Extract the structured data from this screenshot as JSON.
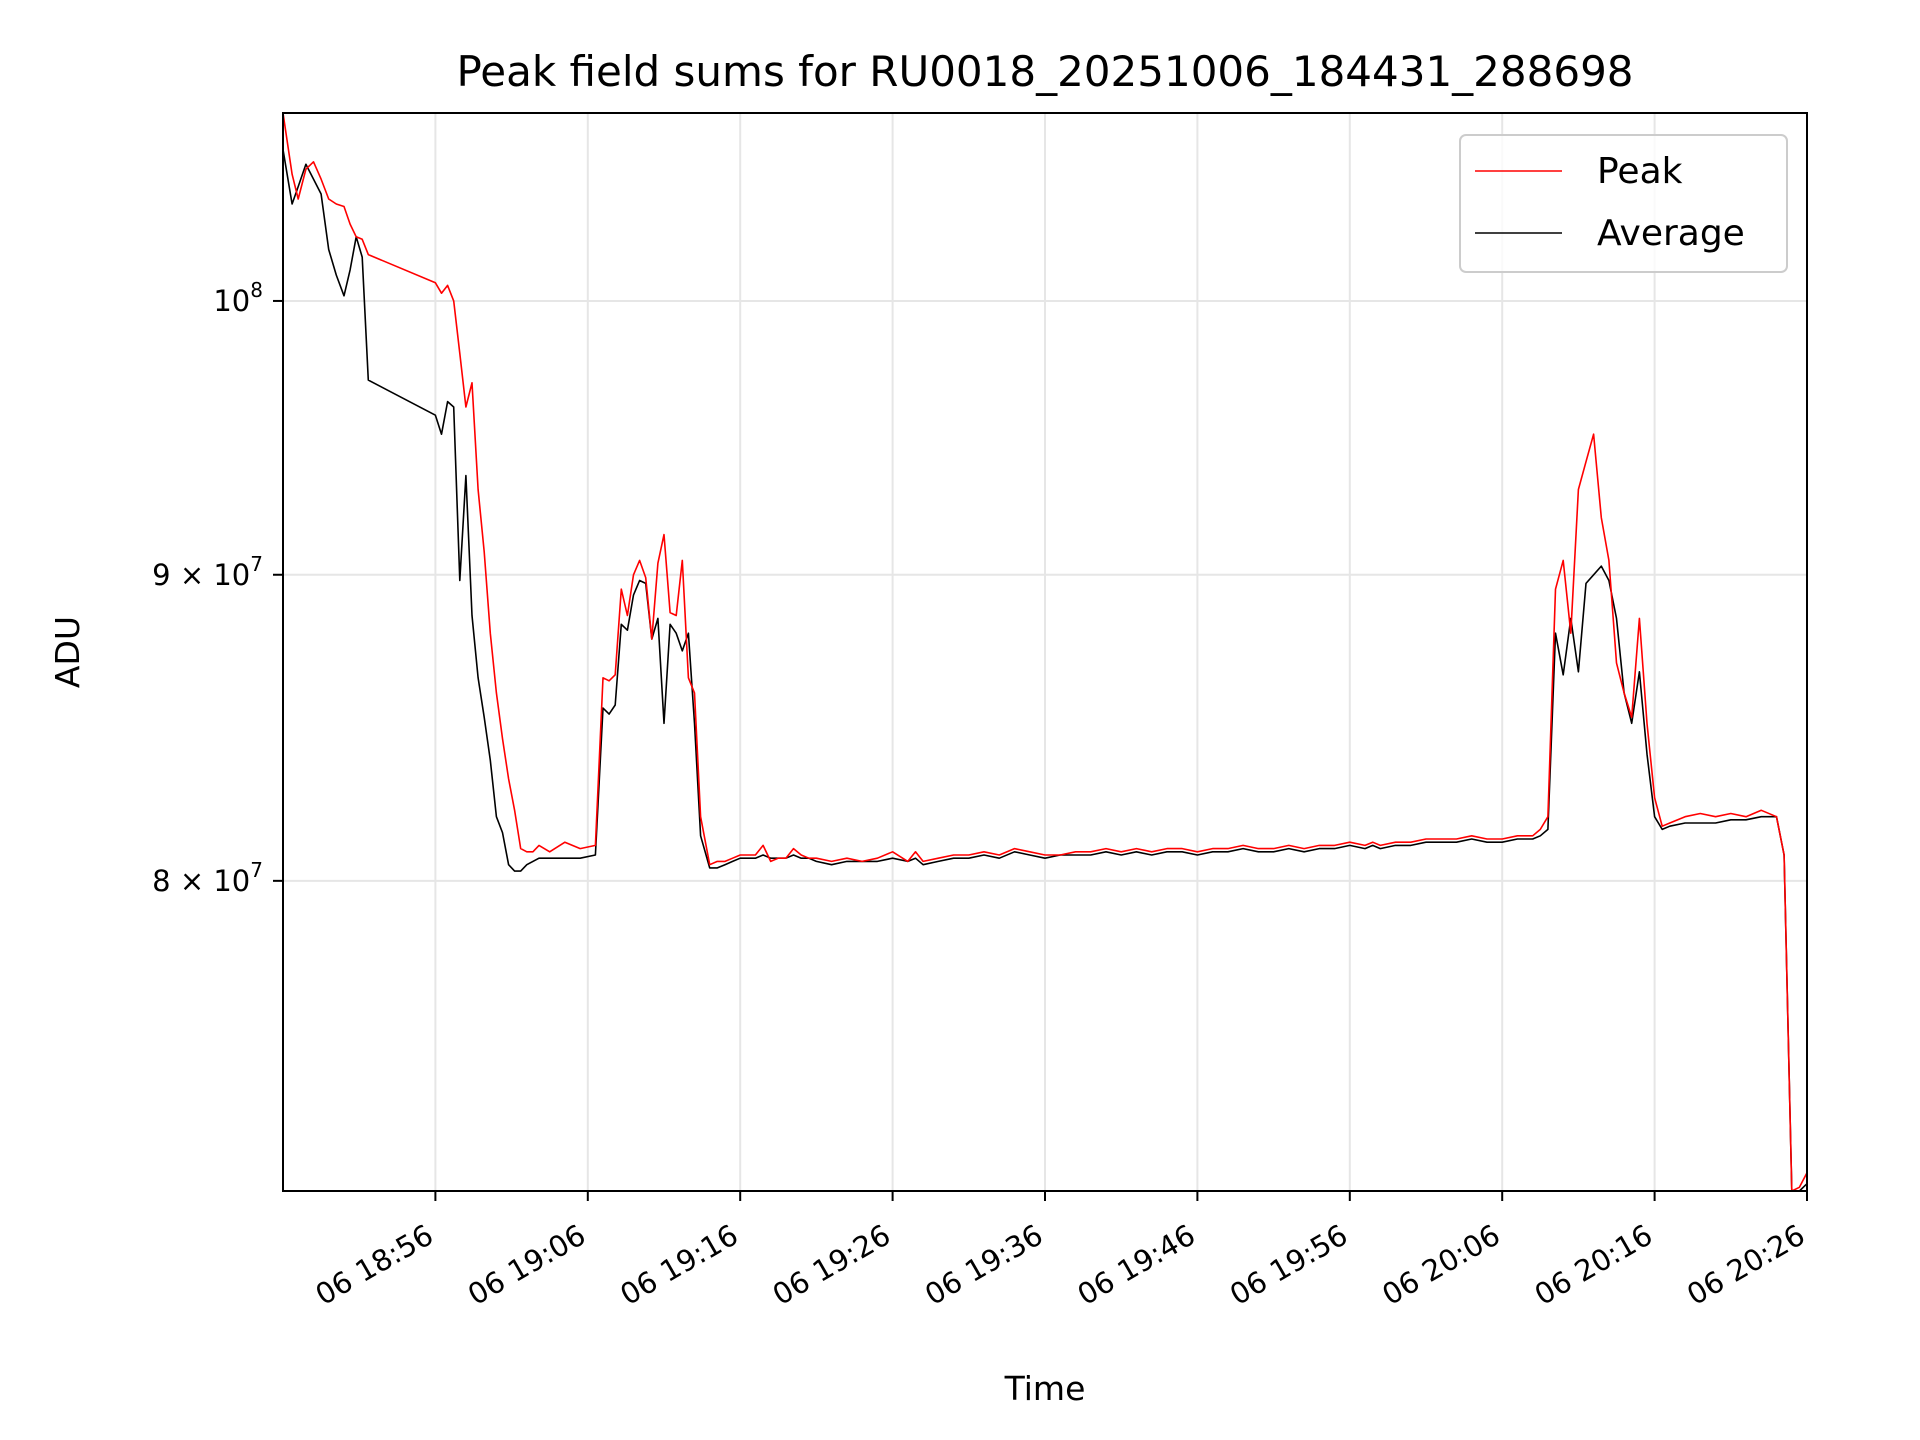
{
  "chart_data": {
    "type": "line",
    "title": "Peak field sums for RU0018_20251006_184431_288698",
    "xlabel": "Time",
    "ylabel": "ADU",
    "y_scale": "log",
    "ylim": [
      71000000,
      107500000
    ],
    "x_unit": "minutes after 18:46",
    "xlim": [
      0,
      100
    ],
    "x_ticks": [
      {
        "value": 10,
        "label": "06 18:56"
      },
      {
        "value": 20,
        "label": "06 19:06"
      },
      {
        "value": 30,
        "label": "06 19:16"
      },
      {
        "value": 40,
        "label": "06 19:26"
      },
      {
        "value": 50,
        "label": "06 19:36"
      },
      {
        "value": 60,
        "label": "06 19:46"
      },
      {
        "value": 70,
        "label": "06 19:56"
      },
      {
        "value": 80,
        "label": "06 20:06"
      },
      {
        "value": 90,
        "label": "06 20:16"
      },
      {
        "value": 100,
        "label": "06 20:26"
      }
    ],
    "y_ticks": [
      {
        "value": 80000000,
        "label": "8 × 10",
        "exp": "7"
      },
      {
        "value": 90000000,
        "label": "9 × 10",
        "exp": "7"
      },
      {
        "value": 100000000,
        "label": "10",
        "exp": "8"
      }
    ],
    "grid": true,
    "legend": "top-right",
    "series": [
      {
        "name": "Peak",
        "color": "#ff0000",
        "x": [
          0,
          0.6,
          1,
          1.5,
          2,
          2.5,
          3,
          3.5,
          4,
          4.4,
          4.8,
          5.2,
          5.6,
          10,
          10.4,
          10.8,
          11.2,
          11.6,
          12,
          12.4,
          12.8,
          13.2,
          13.6,
          14,
          14.4,
          14.8,
          15.2,
          15.6,
          16,
          16.4,
          16.8,
          17.5,
          18.5,
          19.5,
          20.5,
          21,
          21.4,
          21.8,
          22.2,
          22.6,
          23,
          23.4,
          23.8,
          24.2,
          24.6,
          25,
          25.4,
          25.8,
          26.2,
          26.6,
          27,
          27.4,
          28,
          28.5,
          29,
          29.5,
          30,
          31,
          31.5,
          32,
          32.5,
          33,
          33.5,
          34,
          34.5,
          35,
          36,
          37,
          38,
          39,
          40,
          41,
          41.5,
          42,
          43,
          44,
          45,
          46,
          47,
          48,
          49,
          50,
          51,
          52,
          53,
          54,
          55,
          56,
          57,
          58,
          59,
          60,
          61,
          62,
          63,
          64,
          65,
          66,
          67,
          68,
          69,
          70,
          71,
          71.5,
          72,
          73,
          74,
          75,
          76,
          77,
          78,
          79,
          80,
          81,
          82,
          82.5,
          83,
          83.5,
          84,
          84.5,
          85,
          85.5,
          86,
          86.5,
          87,
          87.5,
          88,
          88.5,
          89,
          89.5,
          90,
          90.5,
          91,
          92,
          93,
          94,
          95,
          96,
          97,
          98,
          98.5,
          99,
          99.5,
          100
        ],
        "values": [
          107500000,
          105000000,
          104000000,
          105200000,
          105500000,
          104800000,
          104000000,
          103800000,
          103700000,
          103000000,
          102500000,
          102400000,
          101800000,
          100700000,
          100300000,
          100600000,
          100000000,
          98000000,
          96000000,
          96900000,
          93000000,
          90800000,
          88000000,
          86000000,
          84500000,
          83200000,
          82200000,
          81000000,
          80900000,
          80900000,
          81100000,
          80900000,
          81200000,
          81000000,
          81100000,
          86500000,
          86400000,
          86600000,
          89500000,
          88600000,
          90000000,
          90500000,
          89900000,
          87800000,
          90400000,
          91400000,
          88700000,
          88600000,
          90500000,
          86500000,
          86000000,
          82000000,
          80500000,
          80600000,
          80600000,
          80700000,
          80800000,
          80800000,
          81100000,
          80600000,
          80700000,
          80700000,
          81000000,
          80800000,
          80700000,
          80700000,
          80600000,
          80700000,
          80600000,
          80700000,
          80900000,
          80600000,
          80900000,
          80600000,
          80700000,
          80800000,
          80800000,
          80900000,
          80800000,
          81000000,
          80900000,
          80800000,
          80800000,
          80900000,
          80900000,
          81000000,
          80900000,
          81000000,
          80900000,
          81000000,
          81000000,
          80900000,
          81000000,
          81000000,
          81100000,
          81000000,
          81000000,
          81100000,
          81000000,
          81100000,
          81100000,
          81200000,
          81100000,
          81200000,
          81100000,
          81200000,
          81200000,
          81300000,
          81300000,
          81300000,
          81400000,
          81300000,
          81300000,
          81400000,
          81400000,
          81600000,
          82000000,
          89500000,
          90500000,
          88000000,
          93000000,
          94000000,
          95000000,
          92000000,
          90500000,
          87000000,
          86000000,
          85200000,
          88500000,
          85000000,
          82600000,
          81700000,
          81800000,
          82000000,
          82100000,
          82000000,
          82100000,
          82000000,
          82200000,
          82000000,
          80800000,
          71000000,
          71100000,
          71500000
        ]
      },
      {
        "name": "Average",
        "color": "#000000",
        "x": [
          0,
          0.6,
          1,
          1.5,
          2,
          2.5,
          3,
          3.5,
          4,
          4.4,
          4.8,
          5.2,
          5.6,
          10,
          10.4,
          10.8,
          11.2,
          11.6,
          12,
          12.4,
          12.8,
          13.2,
          13.6,
          14,
          14.4,
          14.8,
          15.2,
          15.6,
          16,
          16.4,
          16.8,
          17.5,
          18.5,
          19.5,
          20.5,
          21,
          21.4,
          21.8,
          22.2,
          22.6,
          23,
          23.4,
          23.8,
          24.2,
          24.6,
          25,
          25.4,
          25.8,
          26.2,
          26.6,
          27,
          27.4,
          28,
          28.5,
          29,
          29.5,
          30,
          31,
          31.5,
          32,
          32.5,
          33,
          33.5,
          34,
          34.5,
          35,
          36,
          37,
          38,
          39,
          40,
          41,
          41.5,
          42,
          43,
          44,
          45,
          46,
          47,
          48,
          49,
          50,
          51,
          52,
          53,
          54,
          55,
          56,
          57,
          58,
          59,
          60,
          61,
          62,
          63,
          64,
          65,
          66,
          67,
          68,
          69,
          70,
          71,
          71.5,
          72,
          73,
          74,
          75,
          76,
          77,
          78,
          79,
          80,
          81,
          82,
          82.5,
          83,
          83.5,
          84,
          84.5,
          85,
          85.5,
          86,
          86.5,
          87,
          87.5,
          88,
          88.5,
          89,
          89.5,
          90,
          90.5,
          91,
          92,
          93,
          94,
          95,
          96,
          97,
          98,
          98.5,
          99,
          99.5,
          100
        ],
        "values": [
          106000000,
          103800000,
          104500000,
          105400000,
          104800000,
          104200000,
          102000000,
          101000000,
          100200000,
          101200000,
          102500000,
          101700000,
          97000000,
          95700000,
          95000000,
          96200000,
          96000000,
          89800000,
          93500000,
          88600000,
          86500000,
          85200000,
          83800000,
          82000000,
          81500000,
          80500000,
          80300000,
          80300000,
          80500000,
          80600000,
          80700000,
          80700000,
          80700000,
          80700000,
          80800000,
          85500000,
          85300000,
          85600000,
          88300000,
          88100000,
          89300000,
          89800000,
          89700000,
          87800000,
          88500000,
          85000000,
          88300000,
          88000000,
          87400000,
          88000000,
          85000000,
          81400000,
          80400000,
          80400000,
          80500000,
          80600000,
          80700000,
          80700000,
          80800000,
          80700000,
          80700000,
          80700000,
          80800000,
          80700000,
          80700000,
          80600000,
          80500000,
          80600000,
          80600000,
          80600000,
          80700000,
          80600000,
          80700000,
          80500000,
          80600000,
          80700000,
          80700000,
          80800000,
          80700000,
          80900000,
          80800000,
          80700000,
          80800000,
          80800000,
          80800000,
          80900000,
          80800000,
          80900000,
          80800000,
          80900000,
          80900000,
          80800000,
          80900000,
          80900000,
          81000000,
          80900000,
          80900000,
          81000000,
          80900000,
          81000000,
          81000000,
          81100000,
          81000000,
          81100000,
          81000000,
          81100000,
          81100000,
          81200000,
          81200000,
          81200000,
          81300000,
          81200000,
          81200000,
          81300000,
          81300000,
          81400000,
          81600000,
          88000000,
          86600000,
          88500000,
          86700000,
          89700000,
          90000000,
          90300000,
          89800000,
          88500000,
          86000000,
          85000000,
          86700000,
          84000000,
          82000000,
          81600000,
          81700000,
          81800000,
          81800000,
          81800000,
          81900000,
          81900000,
          82000000,
          82000000,
          80800000,
          71000000,
          71000000,
          71200000
        ]
      }
    ]
  }
}
